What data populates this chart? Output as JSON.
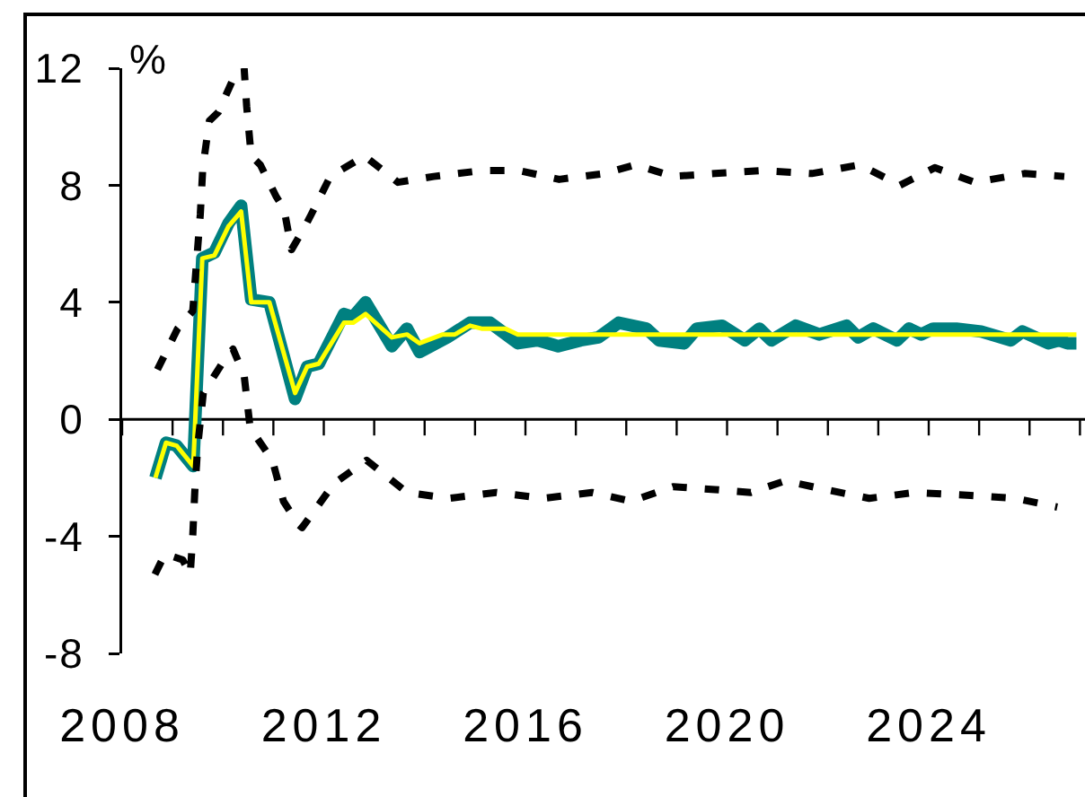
{
  "chart_data": {
    "type": "line",
    "ylabel": "%",
    "xlim": [
      2008,
      2027.1
    ],
    "xticks": [
      2008,
      {
        "value": 2009,
        "label": null
      },
      {
        "value": 2010,
        "label": null
      },
      {
        "value": 2011,
        "label": null
      },
      2012,
      {
        "value": 2013,
        "label": null
      },
      {
        "value": 2014,
        "label": null
      },
      {
        "value": 2015,
        "label": null
      },
      2016,
      {
        "value": 2017,
        "label": null
      },
      {
        "value": 2018,
        "label": null
      },
      {
        "value": 2019,
        "label": null
      },
      2020,
      {
        "value": 2021,
        "label": null
      },
      {
        "value": 2022,
        "label": null
      },
      {
        "value": 2023,
        "label": null
      },
      2024,
      {
        "value": 2025,
        "label": null
      },
      {
        "value": 2026,
        "label": null
      },
      {
        "value": 2027,
        "label": null
      }
    ],
    "ylim": [
      -8,
      12
    ],
    "yticks": [
      -8,
      -4,
      0,
      4,
      8,
      12
    ],
    "series": [
      {
        "color": "#008080",
        "line_style": "solid",
        "x": [
          2008.66,
          2008.87,
          2009.08,
          2009.41,
          2009.59,
          2009.83,
          2010.11,
          2010.36,
          2010.56,
          2010.92,
          2011.43,
          2011.67,
          2011.9,
          2012.4,
          2012.58,
          2012.83,
          2013.35,
          2013.65,
          2013.9,
          2014.45,
          2014.9,
          2015.3,
          2015.85,
          2016.25,
          2016.65,
          2017.1,
          2017.45,
          2017.85,
          2018.4,
          2018.65,
          2019.15,
          2019.4,
          2019.9,
          2020.35,
          2020.64,
          2020.88,
          2021.36,
          2021.83,
          2022.37,
          2022.6,
          2022.9,
          2023.37,
          2023.61,
          2023.85,
          2024.09,
          2024.55,
          2025.04,
          2025.63,
          2025.86,
          2026.37,
          2026.58,
          2026.75,
          2026.93
        ],
        "values": [
          -2.0,
          -0.8,
          -0.9,
          -1.6,
          5.5,
          5.7,
          6.7,
          7.3,
          4.1,
          4.0,
          0.7,
          1.8,
          1.9,
          3.6,
          3.5,
          4.0,
          2.5,
          3.1,
          2.3,
          2.8,
          3.3,
          3.3,
          2.6,
          2.7,
          2.5,
          2.7,
          2.8,
          3.3,
          3.1,
          2.7,
          2.6,
          3.1,
          3.2,
          2.7,
          3.1,
          2.7,
          3.2,
          2.9,
          3.2,
          2.8,
          3.1,
          2.7,
          3.1,
          2.9,
          3.1,
          3.1,
          3.0,
          2.7,
          3.0,
          2.6,
          2.7,
          2.6,
          2.6
        ]
      },
      {
        "color": "#ffff00",
        "line_style": "solid",
        "x": [
          2008.66,
          2008.87,
          2009.08,
          2009.41,
          2009.59,
          2009.83,
          2010.11,
          2010.36,
          2010.56,
          2010.92,
          2011.43,
          2011.67,
          2011.9,
          2012.4,
          2012.58,
          2012.83,
          2013.35,
          2013.65,
          2013.9,
          2014.36,
          2014.6,
          2014.9,
          2015.13,
          2015.6,
          2015.85,
          2026.93
        ],
        "values": [
          -2.0,
          -0.8,
          -0.9,
          -1.6,
          5.5,
          5.6,
          6.6,
          7.1,
          4.0,
          4.0,
          0.9,
          1.8,
          1.9,
          3.3,
          3.3,
          3.6,
          2.8,
          2.9,
          2.6,
          2.9,
          2.9,
          3.2,
          3.1,
          3.1,
          2.9,
          2.9
        ]
      },
      {
        "color": "#000000",
        "line_style": "dashed",
        "x": [
          2008.7,
          2009.1,
          2009.4,
          2009.55,
          2009.6,
          2009.73,
          2009.91,
          2010.27,
          2010.42,
          2010.47,
          2010.56,
          2010.74,
          2011.06,
          2011.21,
          2011.36,
          2011.63,
          2011.75,
          2012.1,
          2012.22,
          2012.81,
          2013.47,
          2014.18,
          2015.13,
          2015.88,
          2016.67,
          2017.56,
          2018.18,
          2018.93,
          2019.76,
          2020.68,
          2021.68,
          2022.63,
          2023.43,
          2024.12,
          2024.91,
          2025.9,
          2026.69
        ],
        "values": [
          1.7,
          3.1,
          3.7,
          7.0,
          8.6,
          10.2,
          10.5,
          11.9,
          12.0,
          10.7,
          9.0,
          8.7,
          7.6,
          7.2,
          5.8,
          6.6,
          7.0,
          8.2,
          8.4,
          9.0,
          8.1,
          8.3,
          8.5,
          8.5,
          8.2,
          8.4,
          8.7,
          8.3,
          8.4,
          8.5,
          8.4,
          8.7,
          8.0,
          8.6,
          8.1,
          8.4,
          8.3
        ]
      },
      {
        "color": "#000000",
        "line_style": "dashed",
        "x": [
          2008.65,
          2008.85,
          2009.2,
          2009.35,
          2009.4,
          2009.44,
          2009.5,
          2009.61,
          2010.09,
          2010.2,
          2010.42,
          2010.54,
          2010.98,
          2011.2,
          2011.5,
          2011.57,
          2012.2,
          2012.85,
          2013.65,
          2014.48,
          2015.42,
          2016.35,
          2017.32,
          2018.1,
          2018.93,
          2019.76,
          2020.47,
          2021.16,
          2021.95,
          2022.82,
          2023.73,
          2024.83,
          2025.72,
          2026.55
        ],
        "values": [
          -5.3,
          -4.6,
          -4.8,
          -5.3,
          -4.0,
          -2.5,
          -0.9,
          0.9,
          2.2,
          2.4,
          1.5,
          -0.3,
          -1.4,
          -2.8,
          -3.6,
          -3.7,
          -2.2,
          -1.4,
          -2.5,
          -2.7,
          -2.5,
          -2.7,
          -2.5,
          -2.8,
          -2.3,
          -2.4,
          -2.5,
          -2.1,
          -2.4,
          -2.7,
          -2.5,
          -2.6,
          -2.7,
          -3.0
        ]
      }
    ]
  }
}
